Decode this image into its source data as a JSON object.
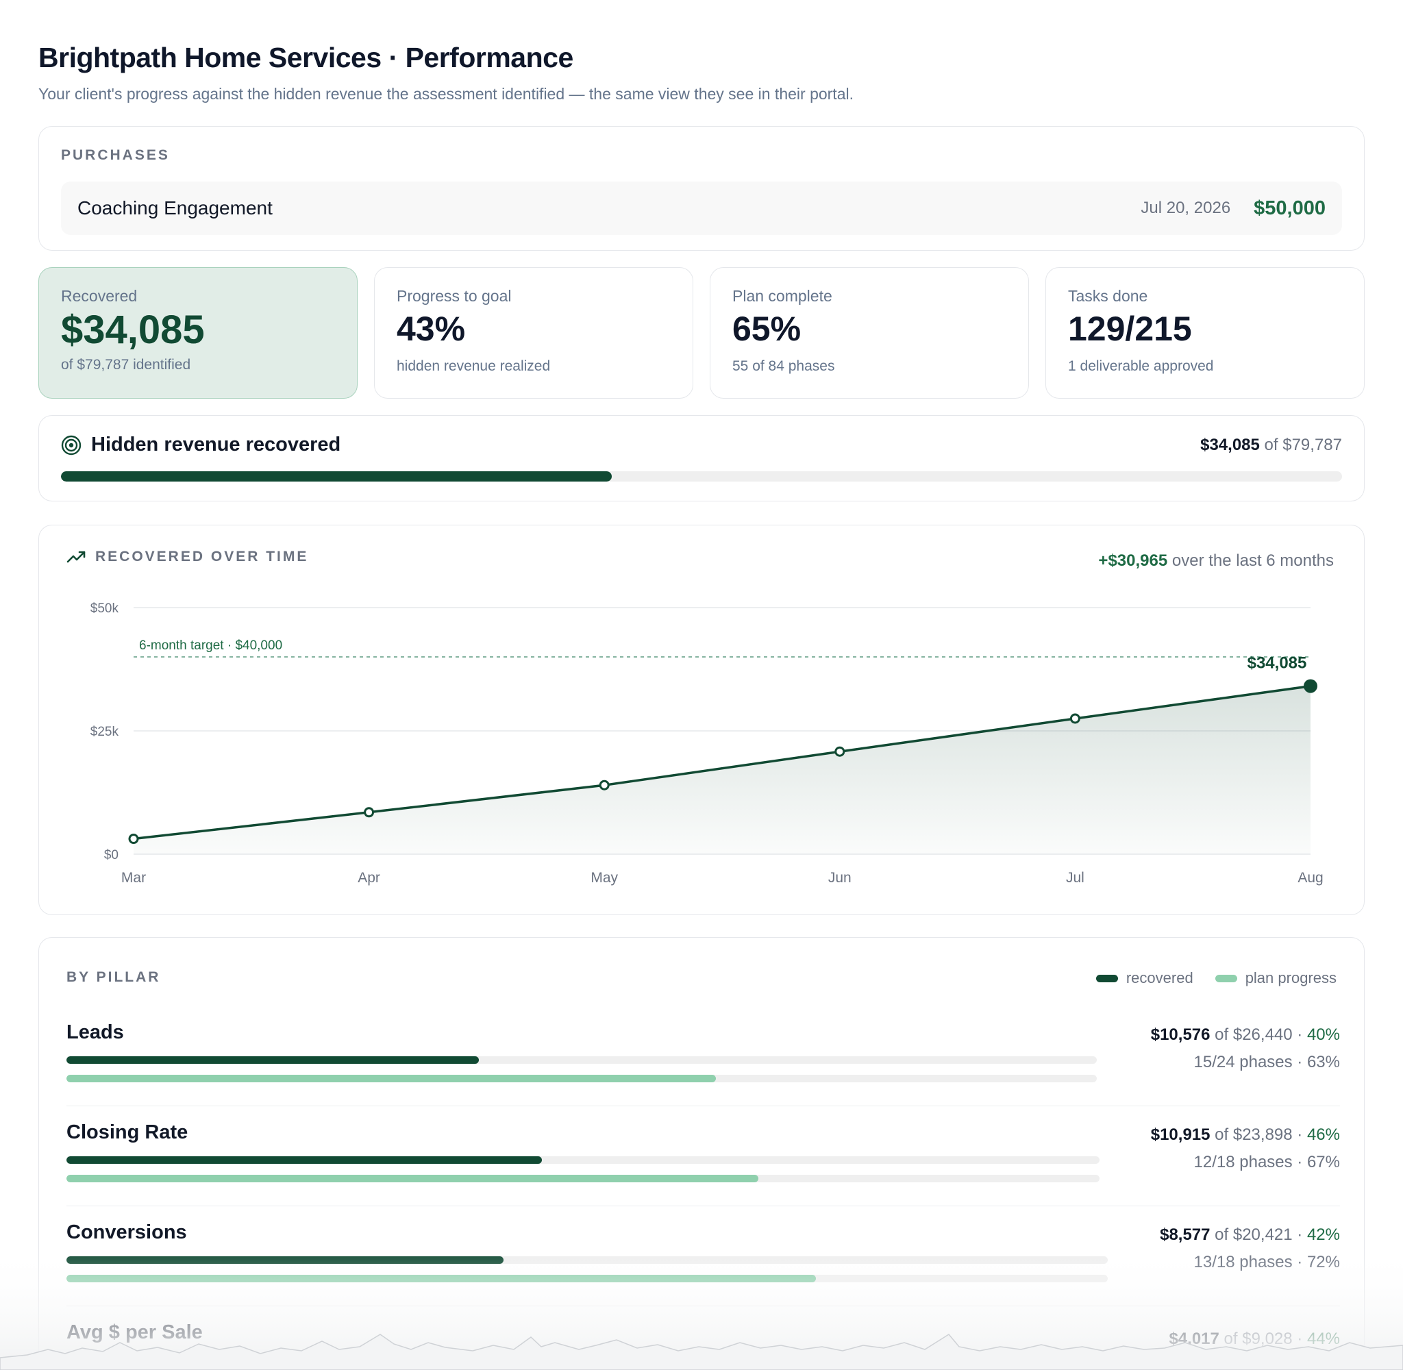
{
  "header": {
    "title": "Brightpath Home Services · Performance",
    "subtitle": "Your client's progress against the hidden revenue the assessment identified — the same view they see in their portal."
  },
  "purchases": {
    "label": "PURCHASES",
    "items": [
      {
        "name": "Coaching Engagement",
        "date": "Jul 20, 2026",
        "amount": "$50,000"
      }
    ]
  },
  "stats": [
    {
      "label": "Recovered",
      "value": "$34,085",
      "sub": "of $79,787 identified"
    },
    {
      "label": "Progress to goal",
      "value": "43%",
      "sub": "hidden revenue realized"
    },
    {
      "label": "Plan complete",
      "value": "65%",
      "sub": "55 of 84 phases"
    },
    {
      "label": "Tasks done",
      "value": "129/215",
      "sub": "1 deliverable approved"
    }
  ],
  "hidden_revenue": {
    "title": "Hidden revenue recovered",
    "recovered": "$34,085",
    "of_word": "of",
    "identified": "$79,787",
    "progress_fraction": 0.43
  },
  "recovered_over_time": {
    "label": "RECOVERED OVER TIME",
    "delta": "+$30,965",
    "delta_suffix": "over the last 6 months"
  },
  "chart_data": {
    "type": "area",
    "title": "RECOVERED OVER TIME",
    "categories": [
      "Mar",
      "Apr",
      "May",
      "Jun",
      "Jul",
      "Aug"
    ],
    "series": [
      {
        "values": [
          3120,
          8500,
          14000,
          20800,
          27500,
          34085
        ]
      }
    ],
    "ylim": [
      0,
      50000
    ],
    "yticks": [
      0,
      25000,
      50000
    ],
    "ytick_labels": [
      "$0",
      "$25k",
      "$50k"
    ],
    "target": {
      "value": 40000,
      "label": "6-month target · $40,000"
    },
    "end_label": "$34,085",
    "grid": true
  },
  "by_pillar": {
    "label": "BY PILLAR",
    "legend": [
      {
        "name": "recovered",
        "color": "#114a33"
      },
      {
        "name": "plan progress",
        "color": "#8fd0ad"
      }
    ],
    "of_word": "of",
    "pillars": [
      {
        "name": "Leads",
        "recovered": "$10,576",
        "identified": "$26,440",
        "pct": "40%",
        "phases": "15/24 phases · 63%",
        "recovered_fraction": 0.4,
        "plan_fraction": 0.63
      },
      {
        "name": "Closing Rate",
        "recovered": "$10,915",
        "identified": "$23,898",
        "pct": "46%",
        "phases": "12/18 phases · 67%",
        "recovered_fraction": 0.46,
        "plan_fraction": 0.67
      },
      {
        "name": "Conversions",
        "recovered": "$8,577",
        "identified": "$20,421",
        "pct": "42%",
        "phases": "13/18 phases · 72%",
        "recovered_fraction": 0.42,
        "plan_fraction": 0.72
      },
      {
        "name": "Avg $ per Sale",
        "recovered": "$4,017",
        "identified": "$9,028",
        "pct": "44%",
        "phases": "",
        "recovered_fraction": 0.44,
        "plan_fraction": 0.0
      }
    ]
  },
  "colors": {
    "accent_dark": "#114a33",
    "accent_text": "#1f6b45",
    "accent_light": "#8fd0ad",
    "highlight_bg": "#e1ede7"
  }
}
